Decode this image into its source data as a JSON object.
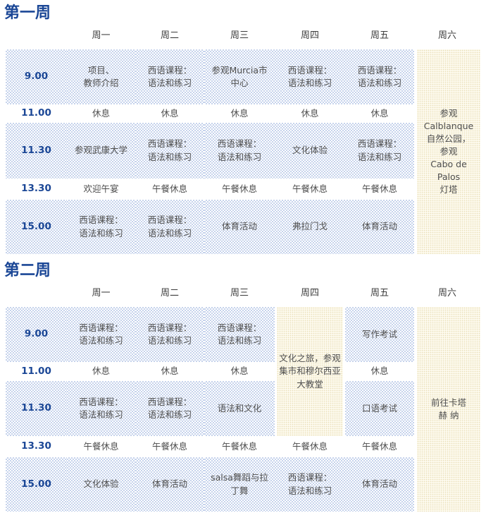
{
  "colors": {
    "title_blue": "#1b4796",
    "time_blue": "#1b4796",
    "header_gray": "#3c3c3c",
    "cell_gray": "#4e4e4e",
    "blue_cell_dot": "#c6d3ec",
    "yellow_cell_dot": "#e8deb8"
  },
  "weeks": [
    {
      "title": "第一周",
      "days": [
        "周一",
        "周二",
        "周三",
        "周四",
        "周五",
        "周六"
      ],
      "times": [
        "9.00",
        "11.00",
        "11.30",
        "13.30",
        "15.00"
      ],
      "rows": [
        [
          "项目、\n教师介绍",
          "西语课程：\n语法和练习",
          "参观Murcia市\n中心",
          "西语课程：\n语法和练习",
          "西语课程：\n语法和练习"
        ],
        [
          "休息",
          "休息",
          "休息",
          "休息",
          "休息"
        ],
        [
          "参观武康大学",
          "西语课程：\n语法和练习",
          "西语课程：\n语法和练习",
          "文化体验",
          "西语课程：\n语法和练习"
        ],
        [
          "欢迎午宴",
          "午餐休息",
          "午餐休息",
          "午餐休息",
          "午餐休息"
        ],
        [
          "西语课程：\n语法和练习",
          "西语课程：\n语法和练习",
          "体育活动",
          "弗拉门戈",
          "体育活动"
        ]
      ],
      "saturday": "参观\nCalblanque\n自然公园，\n参观\nCabo de Palos\n灯塔"
    },
    {
      "title": "第二周",
      "days": [
        "周一",
        "周二",
        "周三",
        "周四",
        "周五",
        "周六"
      ],
      "times": [
        "9.00",
        "11.00",
        "11.30",
        "13.30",
        "15.00"
      ],
      "rows": [
        [
          "西语课程：\n语法和练习",
          "西语课程：\n语法和练习",
          "西语课程：\n语法和练习",
          null,
          "写作考试"
        ],
        [
          "休息",
          "休息",
          "休息",
          null,
          "休息"
        ],
        [
          "西语课程：\n语法和练习",
          "西语课程：\n语法和练习",
          "语法和文化",
          null,
          "口语考试"
        ],
        [
          "午餐休息",
          "午餐休息",
          "午餐休息",
          "午餐休息",
          "午餐休息"
        ],
        [
          "文化体验",
          "体育活动",
          "salsa舞蹈与拉\n丁舞",
          "西语课程：\n语法和练习",
          "体育活动"
        ]
      ],
      "thursday_excursion": "文化之旅，参观\n集市和穆尔西亚\n大教堂",
      "saturday": "前往卡塔\n赫 纳"
    }
  ]
}
